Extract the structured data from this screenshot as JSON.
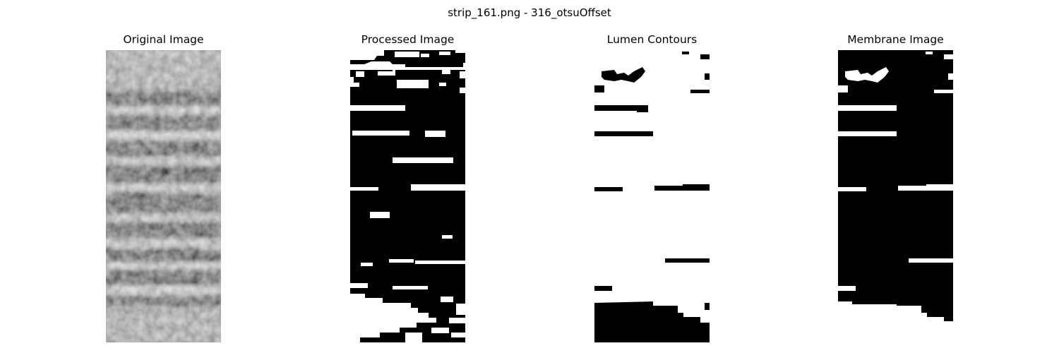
{
  "figure": {
    "title": "strip_161.png - 316_otsuOffset"
  },
  "panels": [
    {
      "id": "original",
      "title": "Original Image",
      "kind": "grayscale-micrograph"
    },
    {
      "id": "processed",
      "title": "Processed Image",
      "kind": "binary-mask"
    },
    {
      "id": "lumen",
      "title": "Lumen Contours",
      "kind": "binary-mask"
    },
    {
      "id": "membrane",
      "title": "Membrane Image",
      "kind": "binary-mask"
    }
  ],
  "colors": {
    "background": "#ffffff",
    "mask_on": "#ffffff",
    "mask_off": "#000000"
  }
}
